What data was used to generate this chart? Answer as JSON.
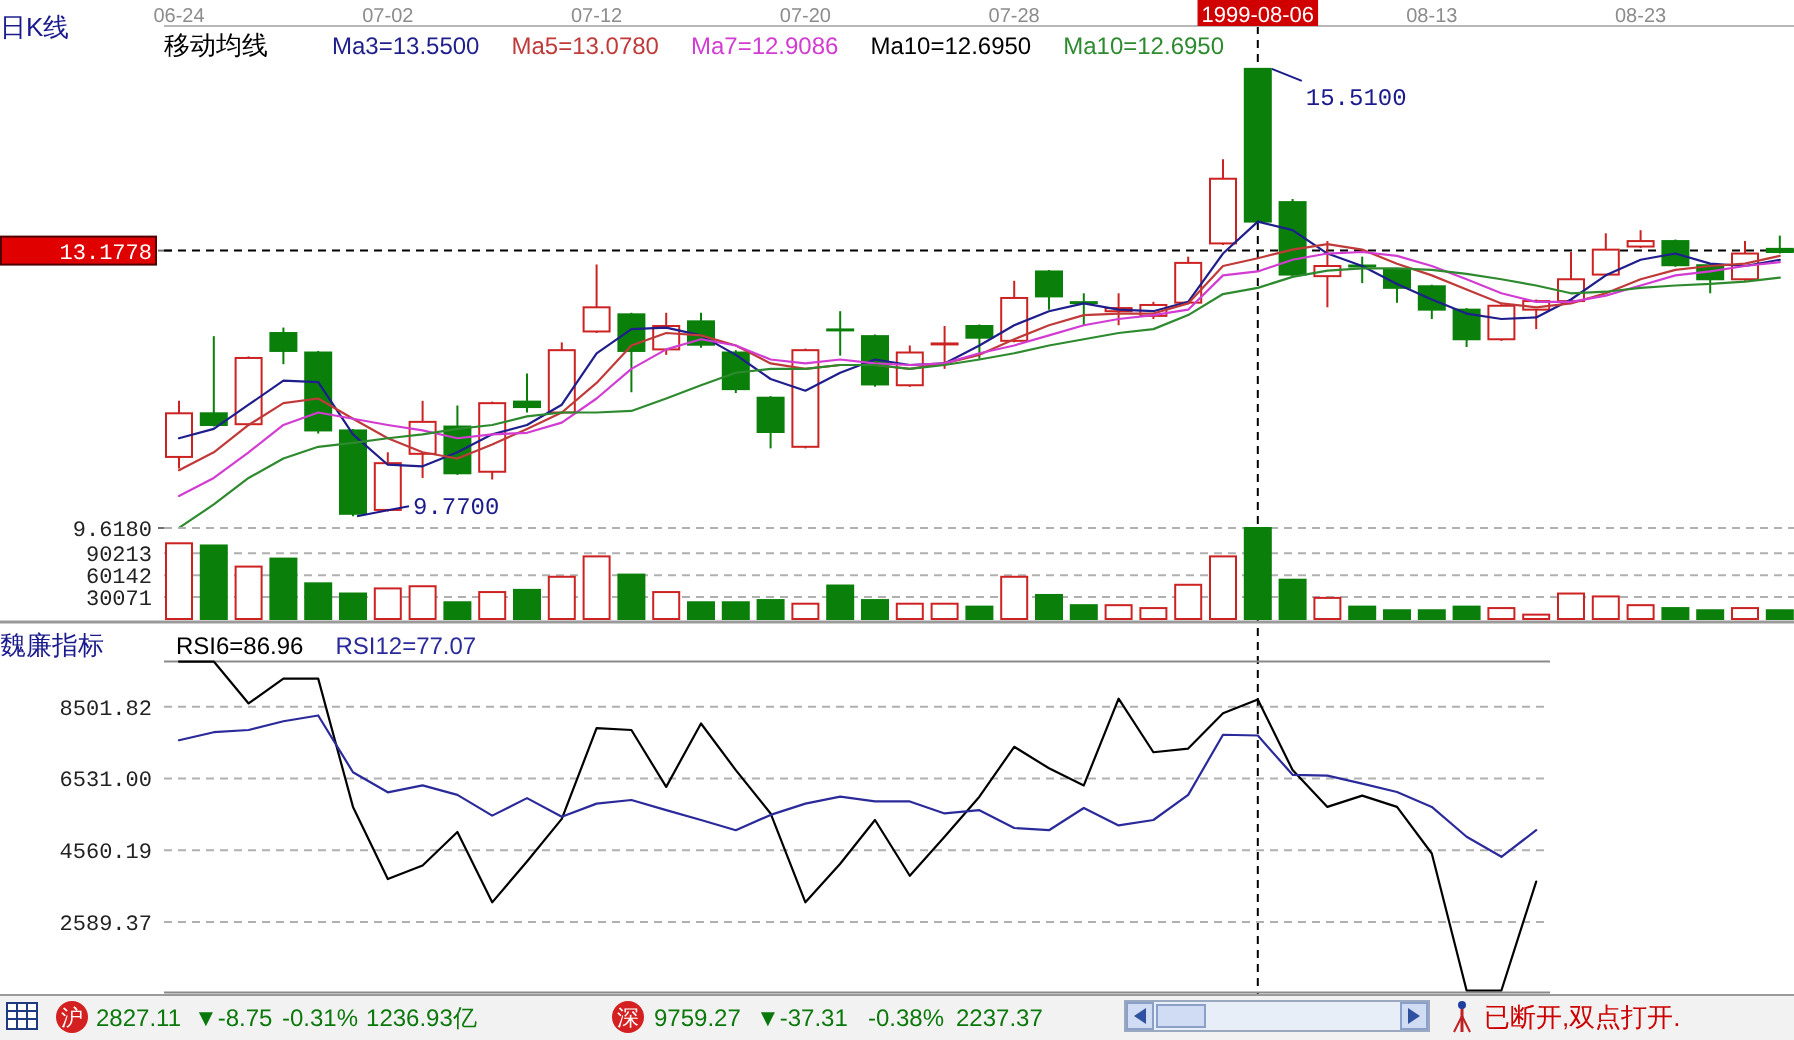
{
  "chart_data": [
    {
      "type": "candlestick",
      "title": "日K线",
      "legend_title": "移动均线",
      "legend": "top",
      "categories": [
        "06-24",
        null,
        null,
        null,
        null,
        null,
        "07-02",
        null,
        null,
        null,
        null,
        null,
        "07-12",
        null,
        null,
        null,
        null,
        null,
        "07-20",
        null,
        null,
        null,
        null,
        null,
        "07-28",
        null,
        null,
        null,
        null,
        null,
        null,
        "1999-08-06",
        null,
        null,
        null,
        null,
        "08-13",
        null,
        null,
        null,
        null,
        null,
        "08-23",
        null,
        null,
        null,
        null
      ],
      "ohlc": [
        [
          10.53,
          11.25,
          10.38,
          11.09
        ],
        [
          11.09,
          12.08,
          10.92,
          10.94
        ],
        [
          10.95,
          11.82,
          10.93,
          11.8
        ],
        [
          12.12,
          12.19,
          11.72,
          11.89
        ],
        [
          11.87,
          11.89,
          10.83,
          10.87
        ],
        [
          10.87,
          10.89,
          9.77,
          9.8
        ],
        [
          9.85,
          10.59,
          9.83,
          10.45
        ],
        [
          10.57,
          11.25,
          10.26,
          10.98
        ],
        [
          10.92,
          11.19,
          10.3,
          10.32
        ],
        [
          10.34,
          11.24,
          10.24,
          11.22
        ],
        [
          11.24,
          11.6,
          11.1,
          11.17
        ],
        [
          11.1,
          12.0,
          11.08,
          11.9
        ],
        [
          12.14,
          13.0,
          12.12,
          12.45
        ],
        [
          12.36,
          12.38,
          11.36,
          11.89
        ],
        [
          11.91,
          12.38,
          11.84,
          12.21
        ],
        [
          12.27,
          12.38,
          11.93,
          11.97
        ],
        [
          11.87,
          11.9,
          11.35,
          11.4
        ],
        [
          11.29,
          11.31,
          10.64,
          10.85
        ],
        [
          10.66,
          11.92,
          10.64,
          11.9
        ],
        [
          12.16,
          12.4,
          11.83,
          12.15
        ],
        [
          12.08,
          12.1,
          11.43,
          11.46
        ],
        [
          11.45,
          11.96,
          11.43,
          11.87
        ],
        [
          11.97,
          12.21,
          11.66,
          11.98
        ],
        [
          12.21,
          12.23,
          11.79,
          12.06
        ],
        [
          12.02,
          12.79,
          12.0,
          12.57
        ],
        [
          12.91,
          12.93,
          12.42,
          12.59
        ],
        [
          12.51,
          12.63,
          12.21,
          12.5
        ],
        [
          12.4,
          12.63,
          12.22,
          12.44
        ],
        [
          12.34,
          12.52,
          12.3,
          12.48
        ],
        [
          12.51,
          13.1,
          12.49,
          13.02
        ],
        [
          13.27,
          14.35,
          13.25,
          14.1
        ],
        [
          15.51,
          15.51,
          13.53,
          13.55
        ],
        [
          13.8,
          13.84,
          12.85,
          12.87
        ],
        [
          12.85,
          13.3,
          12.45,
          12.98
        ],
        [
          12.98,
          13.1,
          12.76,
          12.96
        ],
        [
          12.93,
          12.95,
          12.51,
          12.7
        ],
        [
          12.72,
          12.74,
          12.3,
          12.42
        ],
        [
          12.42,
          12.44,
          11.94,
          12.04
        ],
        [
          12.04,
          12.49,
          12.02,
          12.47
        ],
        [
          12.42,
          12.55,
          12.17,
          12.53
        ],
        [
          12.53,
          13.16,
          12.51,
          12.81
        ],
        [
          12.87,
          13.4,
          12.85,
          13.19
        ],
        [
          13.23,
          13.44,
          13.21,
          13.3
        ],
        [
          13.3,
          13.32,
          12.97,
          12.99
        ],
        [
          12.99,
          13.01,
          12.63,
          12.81
        ],
        [
          12.81,
          13.3,
          12.79,
          13.14
        ],
        [
          13.2,
          13.37,
          13.14,
          13.16
        ]
      ],
      "series": [
        {
          "name": "Ma3=13.5500",
          "type": "line",
          "color": "#1e1e8c",
          "values": [
            10.77,
            10.89,
            11.2,
            11.51,
            11.49,
            10.82,
            10.43,
            10.41,
            10.59,
            10.82,
            10.94,
            11.2,
            11.86,
            12.17,
            12.19,
            12.09,
            11.84,
            11.53,
            11.38,
            11.61,
            11.78,
            11.71,
            11.73,
            11.96,
            12.22,
            12.4,
            12.5,
            12.42,
            12.4,
            12.52,
            13.14,
            13.55,
            13.44,
            13.14,
            12.98,
            12.75,
            12.55,
            12.37,
            12.3,
            12.32,
            12.55,
            12.86,
            13.06,
            13.14,
            13.01,
            12.98,
            13.06
          ]
        },
        {
          "name": "Ma5=13.0780",
          "type": "line",
          "color": "#c03a3a",
          "values": [
            10.36,
            10.59,
            10.94,
            11.22,
            11.28,
            11.02,
            10.77,
            10.59,
            10.51,
            10.69,
            10.89,
            11.1,
            11.48,
            11.96,
            12.12,
            12.09,
            11.96,
            11.73,
            11.66,
            11.71,
            11.71,
            11.66,
            11.73,
            11.84,
            12.04,
            12.22,
            12.35,
            12.37,
            12.37,
            12.5,
            12.98,
            13.08,
            13.19,
            13.26,
            13.19,
            13.01,
            12.86,
            12.68,
            12.5,
            12.45,
            12.5,
            12.63,
            12.81,
            12.93,
            12.98,
            13.01,
            13.11
          ]
        },
        {
          "name": "Ma7=12.9086",
          "type": "line",
          "color": "#d23cd2",
          "values": [
            10.03,
            10.26,
            10.59,
            10.94,
            11.1,
            11.02,
            10.94,
            10.87,
            10.77,
            10.82,
            10.84,
            10.97,
            11.28,
            11.66,
            11.91,
            12.04,
            11.96,
            11.78,
            11.73,
            11.78,
            11.73,
            11.71,
            11.73,
            11.86,
            11.96,
            12.09,
            12.22,
            12.3,
            12.35,
            12.42,
            12.86,
            12.91,
            13.06,
            13.14,
            13.16,
            13.11,
            12.98,
            12.81,
            12.63,
            12.52,
            12.52,
            12.6,
            12.73,
            12.86,
            12.91,
            12.98,
            13.03
          ]
        },
        {
          "name": "Ma10=12.6950",
          "type": "line",
          "color": "#000000",
          "values": [
            null,
            null,
            null,
            null,
            null,
            null,
            null,
            null,
            null,
            null,
            null,
            null,
            null,
            null,
            null,
            null,
            null,
            null,
            null,
            null,
            null,
            null,
            null,
            null,
            null,
            null,
            null,
            null,
            null,
            null,
            null,
            null,
            null,
            null,
            null,
            null,
            null,
            null,
            null,
            null,
            null,
            null,
            null,
            null,
            null,
            null,
            null
          ]
        },
        {
          "name": "Ma10=12.6950",
          "type": "line",
          "color": "#2e8a2e",
          "values": [
            9.62,
            9.92,
            10.26,
            10.51,
            10.66,
            10.71,
            10.77,
            10.82,
            10.89,
            10.94,
            11.05,
            11.1,
            11.1,
            11.12,
            11.28,
            11.45,
            11.61,
            11.66,
            11.66,
            11.71,
            11.71,
            11.66,
            11.71,
            11.78,
            11.86,
            11.96,
            12.04,
            12.12,
            12.17,
            12.35,
            12.62,
            12.7,
            12.84,
            12.92,
            12.95,
            12.95,
            12.93,
            12.88,
            12.81,
            12.73,
            12.63,
            12.65,
            12.7,
            12.73,
            12.75,
            12.78,
            12.83
          ]
        }
      ],
      "ylim": [
        9.618,
        16.06
      ],
      "yticks": [
        {
          "value": 9.618,
          "label": "9.6180"
        },
        13.1778
      ],
      "ref_lines": [
        {
          "axis": "y",
          "value": 13.1778,
          "color": "#000000",
          "line_style": "dashed"
        },
        {
          "axis": "x",
          "value": "1999-08-06",
          "color": "#000000",
          "line_style": "dashed"
        }
      ],
      "annotations": [
        {
          "text": "15.5100",
          "x": "1999-08-06",
          "y": 15.51
        },
        "9.7700"
      ]
    },
    {
      "type": "bar",
      "tick_labels": "y",
      "grid": "y",
      "categories": [
        null,
        null,
        null,
        null,
        null,
        null,
        null,
        null,
        null,
        null,
        null,
        null,
        null,
        null,
        null,
        null,
        null,
        null,
        null,
        null,
        null,
        null,
        null,
        null,
        null,
        null,
        null,
        null,
        null,
        null,
        null,
        null,
        null,
        null,
        null,
        null,
        null,
        null,
        null,
        null,
        null,
        null,
        null,
        null,
        null,
        null,
        null
      ],
      "values": [
        104000,
        101000,
        72000,
        83000,
        49000,
        35000,
        42000,
        45000,
        23000,
        37000,
        40000,
        58000,
        86000,
        61000,
        37000,
        23000,
        23000,
        26000,
        21000,
        46000,
        26000,
        21000,
        21000,
        17000,
        58000,
        33000,
        19000,
        19000,
        15000,
        47000,
        86000,
        125000,
        54000,
        29000,
        17000,
        12000,
        12000,
        17000,
        15000,
        6000,
        35000,
        31000,
        19000,
        15000,
        12000,
        15000,
        12000
      ],
      "colors": [
        "#cc2222",
        "#0a7f0a",
        "#cc2222",
        "#0a7f0a",
        "#0a7f0a",
        "#0a7f0a",
        "#cc2222",
        "#cc2222",
        "#0a7f0a",
        "#cc2222",
        "#0a7f0a",
        "#cc2222",
        "#cc2222",
        "#0a7f0a",
        "#cc2222",
        "#0a7f0a",
        "#0a7f0a",
        "#0a7f0a",
        "#cc2222",
        "#0a7f0a",
        "#0a7f0a",
        "#cc2222",
        "#cc2222",
        "#0a7f0a",
        "#cc2222",
        "#0a7f0a",
        "#0a7f0a",
        "#cc2222",
        "#cc2222",
        "#cc2222",
        "#cc2222",
        "#0a7f0a",
        "#0a7f0a",
        "#cc2222",
        "#0a7f0a",
        "#0a7f0a",
        "#0a7f0a",
        "#0a7f0a",
        "#cc2222",
        "#cc2222",
        "#cc2222",
        "#cc2222",
        "#cc2222",
        "#0a7f0a",
        "#0a7f0a",
        "#cc2222",
        "#0a7f0a"
      ],
      "ylim": [
        0,
        125000
      ],
      "yticks": [
        30071,
        60142,
        90213
      ]
    },
    {
      "type": "line",
      "title": "魏廉指标",
      "legend": "top left",
      "tick_labels": "y",
      "grid": "y",
      "categories": [
        null,
        null,
        null,
        null,
        null,
        null,
        null,
        null,
        null,
        null,
        null,
        null,
        null,
        null,
        null,
        null,
        null,
        null,
        null,
        null,
        null,
        null,
        null,
        null,
        null,
        null,
        null,
        null,
        null,
        null,
        null,
        null,
        null,
        null,
        null,
        null,
        null,
        null,
        null,
        null
      ],
      "series": [
        {
          "name": "RSI6=86.96",
          "color": "#000000",
          "values": [
            9740,
            9740,
            8590,
            9270,
            9270,
            5750,
            3770,
            4140,
            5060,
            3130,
            4250,
            5420,
            7910,
            7860,
            6300,
            8040,
            6760,
            5570,
            3130,
            4190,
            5390,
            3860,
            4930,
            6030,
            7400,
            6810,
            6340,
            8720,
            7250,
            7350,
            8320,
            8700,
            6760,
            5750,
            6060,
            5750,
            4470,
            710,
            710,
            3700
          ]
        },
        {
          "name": "RSI12=77.07",
          "color": "#2a2a9a",
          "values": [
            7580,
            7800,
            7860,
            8100,
            8260,
            6700,
            6150,
            6340,
            6080,
            5510,
            5990,
            5480,
            5840,
            5940,
            5660,
            5390,
            5110,
            5530,
            5840,
            6030,
            5900,
            5900,
            5570,
            5660,
            5170,
            5110,
            5720,
            5240,
            5390,
            6080,
            7730,
            7710,
            6630,
            6610,
            6390,
            6160,
            5750,
            4930,
            4380,
            5110
          ]
        }
      ],
      "ylim": [
        630,
        9744
      ],
      "yticks": [
        8501.82,
        {
          "value": 6531,
          "label": "6531.00"
        },
        4560.19,
        2589.37
      ]
    },
    {
      "type": "other",
      "annotations": [
        "沪",
        "2827.11",
        "▼-8.75",
        "-0.31%",
        "1236.93亿",
        "深",
        "9759.27",
        "▼-37.31",
        "-0.38%",
        "2237.37",
        "已断开,双点打开."
      ]
    }
  ]
}
